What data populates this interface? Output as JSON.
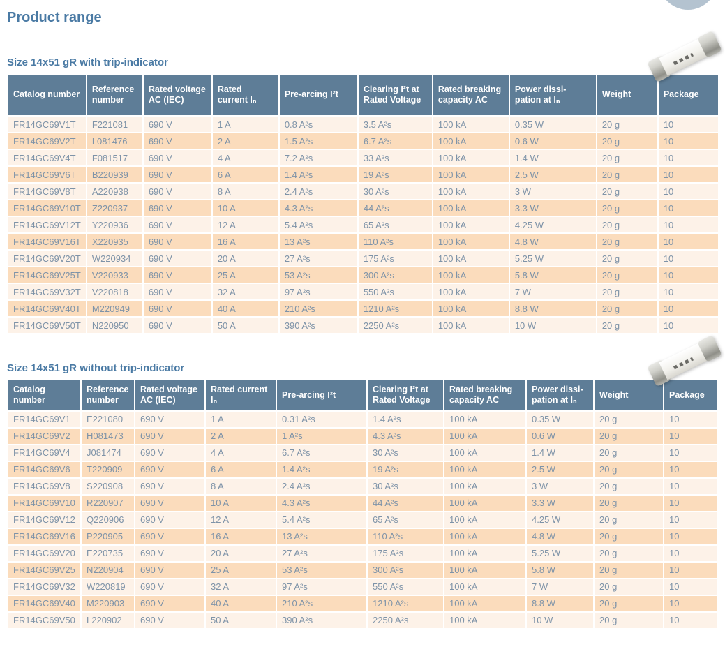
{
  "page": {
    "title": "Product range"
  },
  "colors": {
    "title_text": "#4a7aa4",
    "header_bg": "#5e7d97",
    "header_text": "#ffffff",
    "row_light": "#fdf2e8",
    "row_dark": "#fbdcbc",
    "cell_text": "#7e93a8",
    "corner_circle": "#b4c3d0"
  },
  "images": {
    "fuse_photo": "ceramic-cylindrical-fuse-photo"
  },
  "tables": [
    {
      "title": "Size 14x51 gR with trip-indicator",
      "headers": [
        "Catalog number",
        "Reference number",
        "Rated voltage AC (IEC)",
        "Rated current Iₙ",
        "Pre-arcing I²t",
        "Clearing I²t at Rated Voltage",
        "Rated breaking capacity AC",
        "Power dissi-pation at Iₙ",
        "Weight",
        "Package"
      ],
      "rows": [
        [
          "FR14GC69V1T",
          "F221081",
          "690 V",
          "1 A",
          "0.8 A²s",
          "3.5 A²s",
          "100 kA",
          "0.35 W",
          "20 g",
          "10"
        ],
        [
          "FR14GC69V2T",
          "L081476",
          "690 V",
          "2 A",
          "1.5 A²s",
          "6.7 A²s",
          "100 kA",
          "0.6 W",
          "20 g",
          "10"
        ],
        [
          "FR14GC69V4T",
          "F081517",
          "690 V",
          "4 A",
          "7.2 A²s",
          "33 A²s",
          "100 kA",
          "1.4 W",
          "20 g",
          "10"
        ],
        [
          "FR14GC69V6T",
          "B220939",
          "690 V",
          "6 A",
          "1.4 A²s",
          "19 A²s",
          "100 kA",
          "2.5 W",
          "20 g",
          "10"
        ],
        [
          "FR14GC69V8T",
          "A220938",
          "690 V",
          "8 A",
          "2.4 A²s",
          "30 A²s",
          "100 kA",
          "3 W",
          "20 g",
          "10"
        ],
        [
          "FR14GC69V10T",
          "Z220937",
          "690 V",
          "10 A",
          "4.3 A²s",
          "44 A²s",
          "100 kA",
          "3.3 W",
          "20 g",
          "10"
        ],
        [
          "FR14GC69V12T",
          "Y220936",
          "690 V",
          "12 A",
          "5.4 A²s",
          "65 A²s",
          "100 kA",
          "4.25 W",
          "20 g",
          "10"
        ],
        [
          "FR14GC69V16T",
          "X220935",
          "690 V",
          "16 A",
          "13 A²s",
          "110 A²s",
          "100 kA",
          "4.8 W",
          "20 g",
          "10"
        ],
        [
          "FR14GC69V20T",
          "W220934",
          "690 V",
          "20 A",
          "27 A²s",
          "175 A²s",
          "100 kA",
          "5.25 W",
          "20 g",
          "10"
        ],
        [
          "FR14GC69V25T",
          "V220933",
          "690 V",
          "25 A",
          "53 A²s",
          "300 A²s",
          "100 kA",
          "5.8 W",
          "20 g",
          "10"
        ],
        [
          "FR14GC69V32T",
          "V220818",
          "690 V",
          "32 A",
          "97 A²s",
          "550 A²s",
          "100 kA",
          "7 W",
          "20 g",
          "10"
        ],
        [
          "FR14GC69V40T",
          "M220949",
          "690 V",
          "40 A",
          "210 A²s",
          "1210 A²s",
          "100 kA",
          "8.8 W",
          "20 g",
          "10"
        ],
        [
          "FR14GC69V50T",
          "N220950",
          "690 V",
          "50 A",
          "390 A²s",
          "2250 A²s",
          "100 kA",
          "10 W",
          "20 g",
          "10"
        ]
      ]
    },
    {
      "title": "Size 14x51 gR without trip-indicator",
      "headers": [
        "Catalog number",
        "Reference number",
        "Rated voltage AC (IEC)",
        "Rated current Iₙ",
        "Pre-arcing I²t",
        "Clearing I²t at Rated Voltage",
        "Rated breaking capacity AC",
        "Power dissi-pation at Iₙ",
        "Weight",
        "Package"
      ],
      "rows": [
        [
          "FR14GC69V1",
          "E221080",
          "690 V",
          "1 A",
          "0.31 A²s",
          "1.4 A²s",
          "100 kA",
          "0.35 W",
          "20 g",
          "10"
        ],
        [
          "FR14GC69V2",
          "H081473",
          "690 V",
          "2 A",
          "1 A²s",
          "4.3 A²s",
          "100 kA",
          "0.6 W",
          "20 g",
          "10"
        ],
        [
          "FR14GC69V4",
          "J081474",
          "690 V",
          "4 A",
          "6.7 A²s",
          "30 A²s",
          "100 kA",
          "1.4 W",
          "20 g",
          "10"
        ],
        [
          "FR14GC69V6",
          "T220909",
          "690 V",
          "6 A",
          "1.4 A²s",
          "19 A²s",
          "100 kA",
          "2.5 W",
          "20 g",
          "10"
        ],
        [
          "FR14GC69V8",
          "S220908",
          "690 V",
          "8 A",
          "2.4 A²s",
          "30 A²s",
          "100 kA",
          "3 W",
          "20 g",
          "10"
        ],
        [
          "FR14GC69V10",
          "R220907",
          "690 V",
          "10 A",
          "4.3 A²s",
          "44 A²s",
          "100 kA",
          "3.3 W",
          "20 g",
          "10"
        ],
        [
          "FR14GC69V12",
          "Q220906",
          "690 V",
          "12 A",
          "5.4 A²s",
          "65 A²s",
          "100 kA",
          "4.25 W",
          "20 g",
          "10"
        ],
        [
          "FR14GC69V16",
          "P220905",
          "690 V",
          "16 A",
          "13 A²s",
          "110 A²s",
          "100 kA",
          "4.8 W",
          "20 g",
          "10"
        ],
        [
          "FR14GC69V20",
          "E220735",
          "690 V",
          "20 A",
          "27 A²s",
          "175 A²s",
          "100 kA",
          "5.25 W",
          "20 g",
          "10"
        ],
        [
          "FR14GC69V25",
          "N220904",
          "690 V",
          "25 A",
          "53 A²s",
          "300 A²s",
          "100 kA",
          "5.8 W",
          "20 g",
          "10"
        ],
        [
          "FR14GC69V32",
          "W220819",
          "690 V",
          "32 A",
          "97 A²s",
          "550 A²s",
          "100 kA",
          "7 W",
          "20 g",
          "10"
        ],
        [
          "FR14GC69V40",
          "M220903",
          "690 V",
          "40 A",
          "210 A²s",
          "1210 A²s",
          "100 kA",
          "8.8 W",
          "20 g",
          "10"
        ],
        [
          "FR14GC69V50",
          "L220902",
          "690 V",
          "50 A",
          "390 A²s",
          "2250 A²s",
          "100 kA",
          "10 W",
          "20 g",
          "10"
        ]
      ]
    }
  ]
}
